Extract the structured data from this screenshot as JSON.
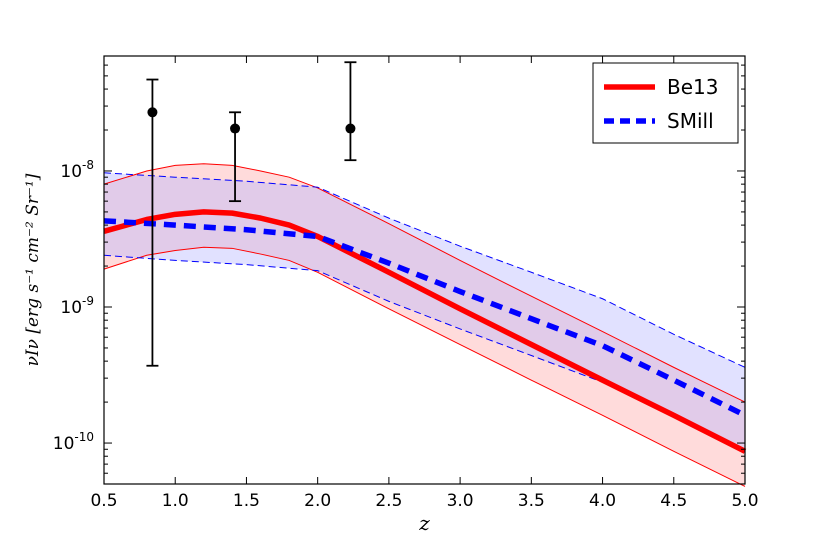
{
  "chart_data": {
    "type": "line",
    "title": "",
    "xlabel": "z",
    "ylabel": "νIν [erg s⁻¹ cm⁻² Sr⁻¹]",
    "xlim": [
      0.5,
      5.0
    ],
    "ylim": [
      5e-11,
      7e-08
    ],
    "yscale": "log",
    "grid": false,
    "legend_position": "top-right",
    "x_ticks": [
      "0.5",
      "1.0",
      "1.5",
      "2.0",
      "2.5",
      "3.0",
      "3.5",
      "4.0",
      "4.5",
      "5.0"
    ],
    "y_ticks": [
      {
        "value": 1e-10,
        "base": "10",
        "exp": "-10"
      },
      {
        "value": 1e-09,
        "base": "10",
        "exp": "-9"
      },
      {
        "value": 1e-08,
        "base": "10",
        "exp": "-8"
      }
    ],
    "series": [
      {
        "name": "Be13",
        "color": "#ff0000",
        "style": "solid",
        "x": [
          0.5,
          0.8,
          1.0,
          1.2,
          1.4,
          1.6,
          1.8,
          2.0,
          2.5,
          3.0,
          3.5,
          4.0,
          4.5,
          5.0
        ],
        "y": [
          3.6e-09,
          4.4e-09,
          4.8e-09,
          5e-09,
          4.9e-09,
          4.5e-09,
          4e-09,
          3.3e-09,
          1.8e-09,
          9.7e-10,
          5.3e-10,
          2.9e-10,
          1.6e-10,
          8.7e-11
        ],
        "band_upper": [
          8e-09,
          1e-08,
          1.1e-08,
          1.13e-08,
          1.1e-08,
          1e-08,
          9e-09,
          7.5e-09,
          4.1e-09,
          2.2e-09,
          1.2e-09,
          6.6e-10,
          3.6e-10,
          2e-10
        ],
        "band_lower": [
          1.9e-09,
          2.4e-09,
          2.6e-09,
          2.75e-09,
          2.7e-09,
          2.45e-09,
          2.2e-09,
          1.8e-09,
          9.7e-10,
          5.3e-10,
          2.9e-10,
          1.6e-10,
          8.7e-11,
          4.8e-11
        ],
        "band_color": "#ff9999"
      },
      {
        "name": "SMill",
        "color": "#0000ff",
        "style": "dashed",
        "x": [
          0.5,
          1.0,
          1.5,
          2.0,
          2.5,
          3.0,
          3.5,
          4.0,
          4.5,
          5.0
        ],
        "y": [
          4.3e-09,
          4e-09,
          3.7e-09,
          3.3e-09,
          2.1e-09,
          1.3e-09,
          8.2e-10,
          5.2e-10,
          2.9e-10,
          1.6e-10
        ],
        "band_upper": [
          9.7e-09,
          9e-09,
          8.4e-09,
          7.6e-09,
          4.5e-09,
          2.8e-09,
          1.8e-09,
          1.15e-09,
          6.3e-10,
          3.6e-10
        ],
        "band_lower": [
          2.4e-09,
          2.2e-09,
          2.05e-09,
          1.85e-09,
          1.1e-09,
          6.9e-10,
          4.4e-10,
          2.8e-10,
          1.6e-10,
          9e-11
        ],
        "band_color": "#b3b3ff"
      }
    ],
    "data_points": [
      {
        "x": 0.84,
        "y": 2.7e-08,
        "y_low": 3.7e-10,
        "y_high": 4.7e-08
      },
      {
        "x": 1.42,
        "y": 2.05e-08,
        "y_low": 6e-09,
        "y_high": 2.7e-08
      },
      {
        "x": 2.23,
        "y": 2.05e-08,
        "y_low": 1.2e-08,
        "y_high": 6.3e-08
      }
    ]
  }
}
